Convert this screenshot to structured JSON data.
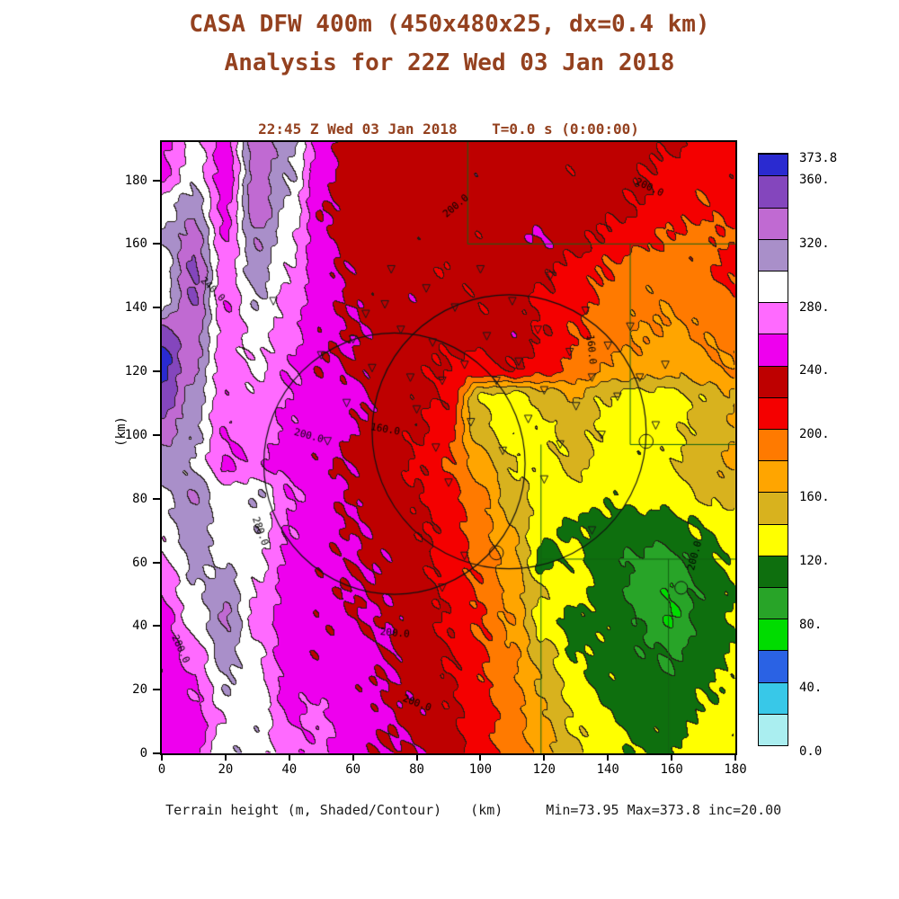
{
  "header": {
    "title_line1": "CASA DFW 400m (450x480x25, dx=0.4 km)",
    "title_line2": "Analysis for 22Z Wed 03 Jan 2018",
    "title_color": "#94411f"
  },
  "plot": {
    "header": "22:45 Z Wed 03 Jan 2018    T=0.0 s (0:00:00)",
    "y_axis_label": "(km)",
    "x_axis_unit": "(km)",
    "caption_left": "Terrain height (m, Shaded/Contour)",
    "caption_right": "Min=73.95 Max=373.8 inc=20.00",
    "x_ticks": [
      0,
      20,
      40,
      60,
      80,
      100,
      120,
      140,
      160,
      180
    ],
    "y_ticks": [
      0,
      20,
      40,
      60,
      80,
      100,
      120,
      140,
      160,
      180
    ]
  },
  "colorbar": {
    "labels": [
      "373.8",
      "360.",
      "320.",
      "280.",
      "240.",
      "200.",
      "160.",
      "120.",
      "80.",
      "40.",
      "0.0"
    ],
    "label_values": [
      373.8,
      360,
      320,
      280,
      240,
      200,
      160,
      120,
      80,
      40,
      0
    ],
    "max_value": 373.8,
    "colors_low_to_high": [
      "#aaeef0",
      "#38c8e8",
      "#2a62e4",
      "#00dc00",
      "#28a428",
      "#0e6f0e",
      "#ffff00",
      "#d8b21e",
      "#ffa500",
      "#ff7a00",
      "#f40000",
      "#be0000",
      "#ee00ee",
      "#ff6aff",
      "#ffffff",
      "#a98fc9",
      "#c06ad2",
      "#8446bd",
      "#2a2ad0"
    ]
  },
  "chart_data": {
    "type": "heatmap",
    "title": "22:45 Z Wed 03 Jan 2018 T=0.0 s (0:00:00)",
    "variable": "Terrain height (m, Shaded/Contour)",
    "units": "m",
    "min": 73.95,
    "max": 373.8,
    "contour_interval": 20.0,
    "x_range_km": [
      0,
      180
    ],
    "y_range_km": [
      0,
      192
    ],
    "levels": {
      "start": 0,
      "step": 20,
      "count": 19
    },
    "grid": {
      "nx": 19,
      "ny": 20,
      "x_spacing_km": 10,
      "row_order": "north_to_south",
      "values": [
        [
          252,
          286,
          252,
          334,
          308,
          252,
          228,
          232,
          228,
          232,
          230,
          228,
          232,
          228,
          230,
          226,
          224,
          212,
          206
        ],
        [
          258,
          292,
          248,
          330,
          302,
          246,
          230,
          234,
          226,
          230,
          234,
          228,
          230,
          224,
          228,
          222,
          210,
          206,
          214
        ],
        [
          290,
          312,
          254,
          338,
          294,
          242,
          228,
          232,
          230,
          226,
          232,
          230,
          228,
          232,
          226,
          220,
          210,
          202,
          208
        ],
        [
          305,
          330,
          260,
          320,
          285,
          245,
          232,
          228,
          235,
          230,
          225,
          235,
          240,
          228,
          215,
          205,
          198,
          194,
          200
        ],
        [
          285,
          345,
          270,
          310,
          280,
          248,
          235,
          230,
          226,
          222,
          228,
          232,
          225,
          210,
          198,
          186,
          190,
          198,
          206
        ],
        [
          295,
          340,
          262,
          300,
          272,
          246,
          238,
          232,
          236,
          228,
          222,
          228,
          215,
          205,
          195,
          185,
          182,
          188,
          196
        ],
        [
          350,
          330,
          270,
          288,
          268,
          244,
          240,
          234,
          230,
          226,
          230,
          235,
          218,
          200,
          190,
          180,
          176,
          182,
          188
        ],
        [
          368,
          322,
          268,
          282,
          262,
          242,
          238,
          230,
          224,
          218,
          214,
          222,
          210,
          195,
          178,
          172,
          168,
          174,
          180
        ],
        [
          355,
          310,
          265,
          275,
          258,
          252,
          246,
          234,
          226,
          216,
          138,
          128,
          146,
          160,
          138,
          130,
          132,
          145,
          158
        ],
        [
          330,
          305,
          262,
          268,
          255,
          252,
          240,
          230,
          222,
          205,
          148,
          126,
          136,
          150,
          134,
          128,
          135,
          148,
          160
        ],
        [
          310,
          298,
          258,
          262,
          250,
          244,
          236,
          228,
          218,
          200,
          170,
          140,
          132,
          146,
          130,
          126,
          138,
          152,
          162
        ],
        [
          295,
          320,
          285,
          300,
          262,
          248,
          238,
          230,
          222,
          208,
          185,
          152,
          128,
          134,
          124,
          126,
          130,
          142,
          150
        ],
        [
          288,
          312,
          290,
          295,
          258,
          246,
          240,
          234,
          224,
          212,
          190,
          160,
          125,
          116,
          112,
          108,
          112,
          120,
          128
        ],
        [
          275,
          305,
          295,
          285,
          255,
          244,
          242,
          236,
          226,
          214,
          196,
          168,
          112,
          126,
          108,
          96,
          92,
          110,
          124
        ],
        [
          262,
          295,
          315,
          278,
          252,
          246,
          240,
          238,
          228,
          216,
          198,
          172,
          140,
          128,
          112,
          94,
          82,
          105,
          118
        ],
        [
          250,
          285,
          322,
          272,
          250,
          245,
          242,
          240,
          230,
          218,
          200,
          178,
          128,
          112,
          118,
          100,
          78,
          108,
          120
        ],
        [
          245,
          268,
          310,
          282,
          248,
          244,
          252,
          242,
          232,
          220,
          202,
          182,
          150,
          120,
          112,
          104,
          98,
          112,
          120
        ],
        [
          244,
          258,
          298,
          288,
          252,
          258,
          246,
          240,
          234,
          222,
          204,
          186,
          158,
          128,
          116,
          108,
          104,
          118,
          126
        ],
        [
          246,
          250,
          280,
          295,
          260,
          264,
          250,
          242,
          236,
          226,
          208,
          190,
          164,
          136,
          122,
          114,
          112,
          124,
          132
        ],
        [
          248,
          252,
          300,
          290,
          265,
          262,
          246,
          240,
          238,
          228,
          210,
          194,
          170,
          142,
          128,
          118,
          116,
          128,
          136
        ]
      ]
    },
    "range_rings_km": [
      {
        "cx": 73,
        "cy": 91,
        "r": 41
      },
      {
        "cx": 109,
        "cy": 101,
        "r": 43
      }
    ],
    "county_lines_km": [
      [
        [
          96,
          192
        ],
        [
          96,
          160
        ],
        [
          180,
          160
        ]
      ],
      [
        [
          147,
          160
        ],
        [
          147,
          97
        ],
        [
          180,
          97
        ]
      ],
      [
        [
          119,
          97
        ],
        [
          119,
          0
        ]
      ],
      [
        [
          119,
          61
        ],
        [
          180,
          61
        ]
      ],
      [
        [
          159,
          61
        ],
        [
          159,
          0
        ]
      ]
    ],
    "station_markers_km": [
      [
        50,
        125
      ],
      [
        58,
        110
      ],
      [
        64,
        138
      ],
      [
        66,
        121
      ],
      [
        72,
        152
      ],
      [
        75,
        133
      ],
      [
        78,
        118
      ],
      [
        80,
        108
      ],
      [
        83,
        146
      ],
      [
        85,
        129
      ],
      [
        86,
        96
      ],
      [
        88,
        117
      ],
      [
        92,
        140
      ],
      [
        95,
        122
      ],
      [
        97,
        104
      ],
      [
        100,
        152
      ],
      [
        102,
        131
      ],
      [
        105,
        117
      ],
      [
        107,
        95
      ],
      [
        110,
        142
      ],
      [
        112,
        123
      ],
      [
        115,
        105
      ],
      [
        118,
        133
      ],
      [
        120,
        114
      ],
      [
        122,
        150
      ],
      [
        125,
        97
      ],
      [
        128,
        126
      ],
      [
        130,
        109
      ],
      [
        133,
        139
      ],
      [
        135,
        118
      ],
      [
        138,
        100
      ],
      [
        140,
        128
      ],
      [
        143,
        112
      ],
      [
        147,
        134
      ],
      [
        150,
        118
      ],
      [
        155,
        103
      ],
      [
        90,
        85
      ],
      [
        95,
        62
      ],
      [
        88,
        52
      ],
      [
        120,
        86
      ],
      [
        135,
        70
      ],
      [
        60,
        130
      ],
      [
        70,
        141
      ],
      [
        35,
        142
      ],
      [
        52,
        98
      ],
      [
        158,
        122
      ]
    ],
    "small_circles_km": [
      [
        163,
        52,
        2
      ],
      [
        152,
        98,
        2.2
      ],
      [
        105,
        63,
        2.2
      ]
    ],
    "contour_labels": [
      {
        "t": "200.0",
        "x": 92,
        "y": 172,
        "r": -40
      },
      {
        "t": "200.0",
        "x": 153,
        "y": 178,
        "r": 25
      },
      {
        "t": "240.0",
        "x": 16,
        "y": 146,
        "r": 45
      },
      {
        "t": "160.0",
        "x": 135,
        "y": 127,
        "r": 85
      },
      {
        "t": "200.0",
        "x": 46,
        "y": 100,
        "r": 15
      },
      {
        "t": "160.0",
        "x": 70,
        "y": 102,
        "r": 10
      },
      {
        "t": "280.0",
        "x": 31,
        "y": 70,
        "r": 70
      },
      {
        "t": "280.0",
        "x": 6,
        "y": 33,
        "r": 65
      },
      {
        "t": "200.0",
        "x": 73,
        "y": 38,
        "r": 5
      },
      {
        "t": "200.0",
        "x": 80,
        "y": 16,
        "r": 20
      },
      {
        "t": "200.0",
        "x": 167,
        "y": 62,
        "r": -75
      }
    ]
  }
}
